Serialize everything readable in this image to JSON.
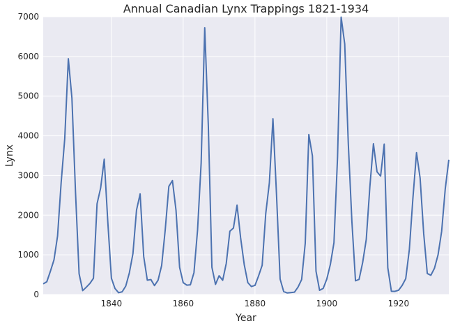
{
  "chart_data": {
    "type": "line",
    "title": "Annual Canadian Lynx Trappings 1821-1934",
    "xlabel": "Year",
    "ylabel": "Lynx",
    "xlim": [
      1821,
      1934
    ],
    "ylim": [
      0,
      7000
    ],
    "xticks": [
      1840,
      1860,
      1880,
      1900,
      1920
    ],
    "yticks": [
      0,
      1000,
      2000,
      3000,
      4000,
      5000,
      6000,
      7000
    ],
    "grid": true,
    "background_color": "#EAEAF2",
    "grid_color": "#FFFFFF",
    "series": [
      {
        "color": "#4C72B0",
        "x": [
          1821,
          1822,
          1823,
          1824,
          1825,
          1826,
          1827,
          1828,
          1829,
          1830,
          1831,
          1832,
          1833,
          1834,
          1835,
          1836,
          1837,
          1838,
          1839,
          1840,
          1841,
          1842,
          1843,
          1844,
          1845,
          1846,
          1847,
          1848,
          1849,
          1850,
          1851,
          1852,
          1853,
          1854,
          1855,
          1856,
          1857,
          1858,
          1859,
          1860,
          1861,
          1862,
          1863,
          1864,
          1865,
          1866,
          1867,
          1868,
          1869,
          1870,
          1871,
          1872,
          1873,
          1874,
          1875,
          1876,
          1877,
          1878,
          1879,
          1880,
          1881,
          1882,
          1883,
          1884,
          1885,
          1886,
          1887,
          1888,
          1889,
          1890,
          1891,
          1892,
          1893,
          1894,
          1895,
          1896,
          1897,
          1898,
          1899,
          1900,
          1901,
          1902,
          1903,
          1904,
          1905,
          1906,
          1907,
          1908,
          1909,
          1910,
          1911,
          1912,
          1913,
          1914,
          1915,
          1916,
          1917,
          1918,
          1919,
          1920,
          1921,
          1922,
          1923,
          1924,
          1925,
          1926,
          1927,
          1928,
          1929,
          1930,
          1931,
          1932,
          1933,
          1934
        ],
        "values": [
          269,
          321,
          585,
          871,
          1475,
          2821,
          3928,
          5943,
          4950,
          2577,
          523,
          98,
          184,
          279,
          409,
          2285,
          2685,
          3409,
          1824,
          409,
          151,
          45,
          68,
          213,
          546,
          1033,
          2129,
          2536,
          957,
          361,
          377,
          225,
          360,
          731,
          1638,
          2725,
          2871,
          2119,
          684,
          299,
          236,
          245,
          552,
          1623,
          3311,
          6721,
          4254,
          687,
          255,
          473,
          358,
          784,
          1594,
          1676,
          2251,
          1426,
          756,
          299,
          201,
          229,
          469,
          736,
          2042,
          2811,
          4431,
          2511,
          389,
          73,
          39,
          49,
          59,
          188,
          377,
          1292,
          4031,
          3495,
          587,
          105,
          153,
          387,
          758,
          1307,
          3465,
          6991,
          6313,
          3794,
          1836,
          345,
          382,
          808,
          1388,
          2713,
          3800,
          3091,
          2985,
          3790,
          674,
          81,
          80,
          108,
          229,
          399,
          1132,
          2432,
          3574,
          2935,
          1537,
          529,
          485,
          662,
          1000,
          1590,
          2657,
          3396
        ]
      }
    ]
  }
}
